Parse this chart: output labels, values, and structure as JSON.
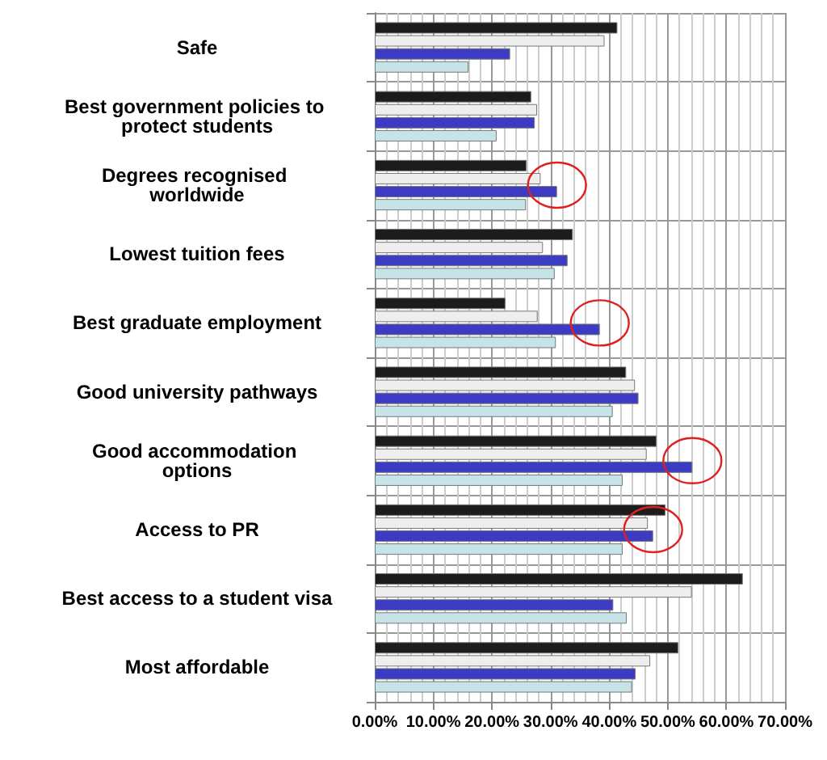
{
  "chart_data": {
    "type": "bar",
    "orientation": "horizontal",
    "categories": [
      "Safe",
      "Best government policies to protect students",
      "Degrees recognised worldwide",
      "Lowest tuition fees",
      "Best graduate employment",
      "Good university pathways",
      "Good accommodation options",
      "Access to PR",
      "Best access to a student visa",
      "Most affordable"
    ],
    "series": [
      {
        "color": "#1c1c1c",
        "values": [
          41.4,
          26.7,
          25.9,
          33.8,
          22.3,
          42.9,
          48.1,
          49.6,
          62.8,
          51.8
        ]
      },
      {
        "color": "#eeeeee",
        "values": [
          39.2,
          27.7,
          28.3,
          28.7,
          27.8,
          44.4,
          46.4,
          46.6,
          54.1,
          47.0
        ]
      },
      {
        "color": "#3b3bc4",
        "values": [
          23.1,
          27.3,
          31.1,
          32.9,
          38.4,
          45.0,
          54.2,
          47.5,
          40.7,
          44.5
        ]
      },
      {
        "color": "#c6e4e8",
        "values": [
          16.0,
          20.8,
          25.8,
          30.7,
          30.9,
          40.6,
          42.3,
          42.3,
          43.0,
          43.9
        ]
      }
    ],
    "xlim": [
      0,
      70
    ],
    "xticks": [
      {
        "value": 0,
        "label": "0.00%"
      },
      {
        "value": 10,
        "label": "10.00%"
      },
      {
        "value": 20,
        "label": "20.00%"
      },
      {
        "value": 30,
        "label": "30.00%"
      },
      {
        "value": 40,
        "label": "40.00%"
      },
      {
        "value": 50,
        "label": "50.00%"
      },
      {
        "value": 60,
        "label": "60.00%"
      },
      {
        "value": 70,
        "label": "70.00%"
      }
    ],
    "grid": true
  }
}
